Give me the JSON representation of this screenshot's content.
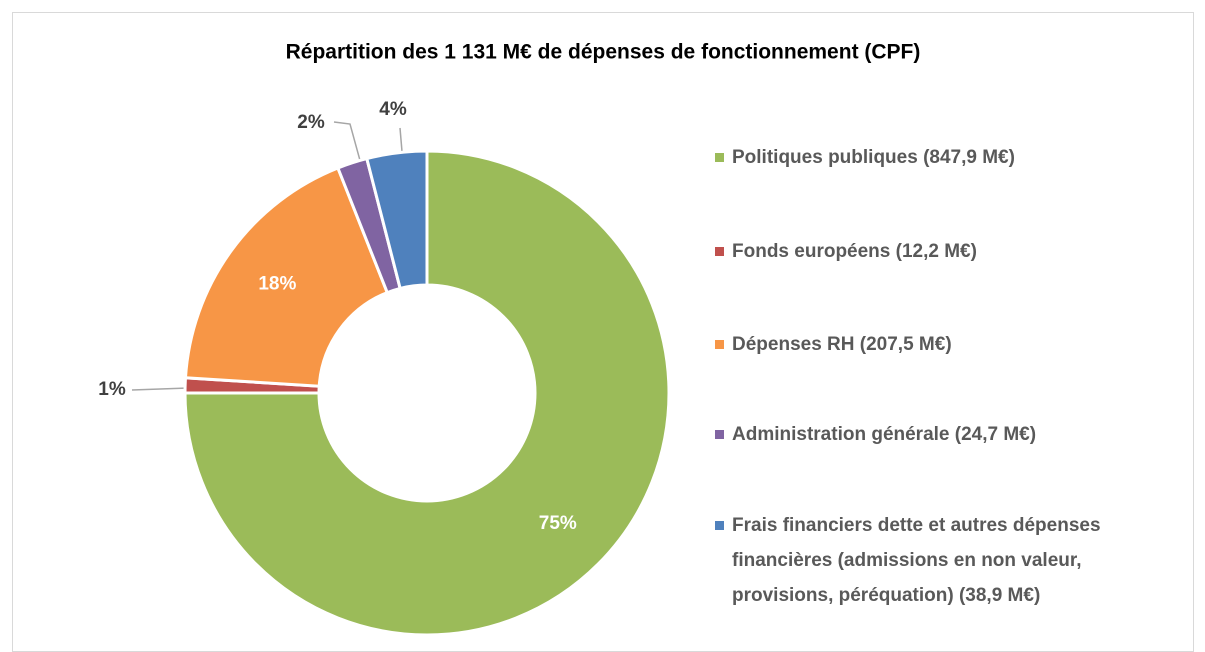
{
  "chart_data": {
    "type": "pie",
    "title": "Répartition des 1 131 M€ de dépenses de fonctionnement (CPF)",
    "categories": [
      "Politiques publiques (847,9 M€)",
      "Fonds européens (12,2 M€)",
      "Dépenses RH (207,5 M€)",
      "Administration générale (24,7 M€)",
      "Frais financiers dette et autres dépenses financières (admissions en non valeur, provisions, péréquation)  (38,9 M€)"
    ],
    "values": [
      75,
      1,
      18,
      2,
      4
    ],
    "value_labels": [
      "75%",
      "1%",
      "18%",
      "2%",
      "4%"
    ],
    "colors": [
      "#9bbb59",
      "#c0504d",
      "#f79646",
      "#8064a2",
      "#4f81bd"
    ],
    "legend": "right"
  }
}
